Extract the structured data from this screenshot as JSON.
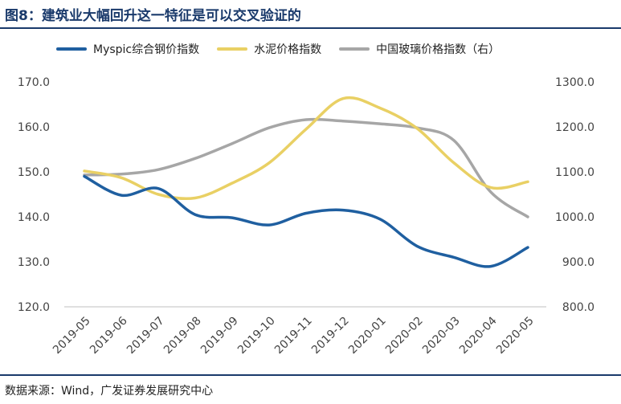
{
  "header": {
    "title": "图8：建筑业大幅回升这一特征是可以交叉验证的"
  },
  "footer": {
    "source": "数据来源：Wind，广发证券发展研究中心"
  },
  "chart_data": {
    "type": "line",
    "categories": [
      "2019-05",
      "2019-06",
      "2019-07",
      "2019-08",
      "2019-09",
      "2019-10",
      "2019-11",
      "2019-12",
      "2020-01",
      "2020-02",
      "2020-03",
      "2020-04",
      "2020-05"
    ],
    "series": [
      {
        "name": "Myspic综合钢价指数",
        "axis": "left",
        "color": "#1f5fa0",
        "values": [
          149.0,
          144.8,
          146.3,
          140.5,
          139.8,
          138.2,
          140.8,
          141.5,
          139.5,
          133.5,
          131.0,
          129.0,
          133.2
        ]
      },
      {
        "name": "水泥价格指数",
        "axis": "left",
        "color": "#e9d064",
        "values": [
          150.2,
          148.7,
          145.0,
          144.2,
          147.5,
          152.0,
          159.5,
          166.3,
          164.2,
          159.7,
          152.0,
          146.5,
          147.8
        ]
      },
      {
        "name": "中国玻璃价格指数（右）",
        "axis": "right",
        "color": "#a6a6a6",
        "values": [
          1093,
          1095,
          1105,
          1130,
          1163,
          1198,
          1216,
          1213,
          1207,
          1198,
          1170,
          1055,
          1000
        ]
      }
    ],
    "left_axis": {
      "min": 120,
      "max": 170,
      "ticks": [
        "120.0",
        "130.0",
        "140.0",
        "150.0",
        "160.0",
        "170.0"
      ]
    },
    "right_axis": {
      "min": 800,
      "max": 1300,
      "ticks": [
        "800.0",
        "900.0",
        "1000.0",
        "1100.0",
        "1200.0",
        "1300.0"
      ]
    },
    "grid": false,
    "legend_position": "top"
  }
}
